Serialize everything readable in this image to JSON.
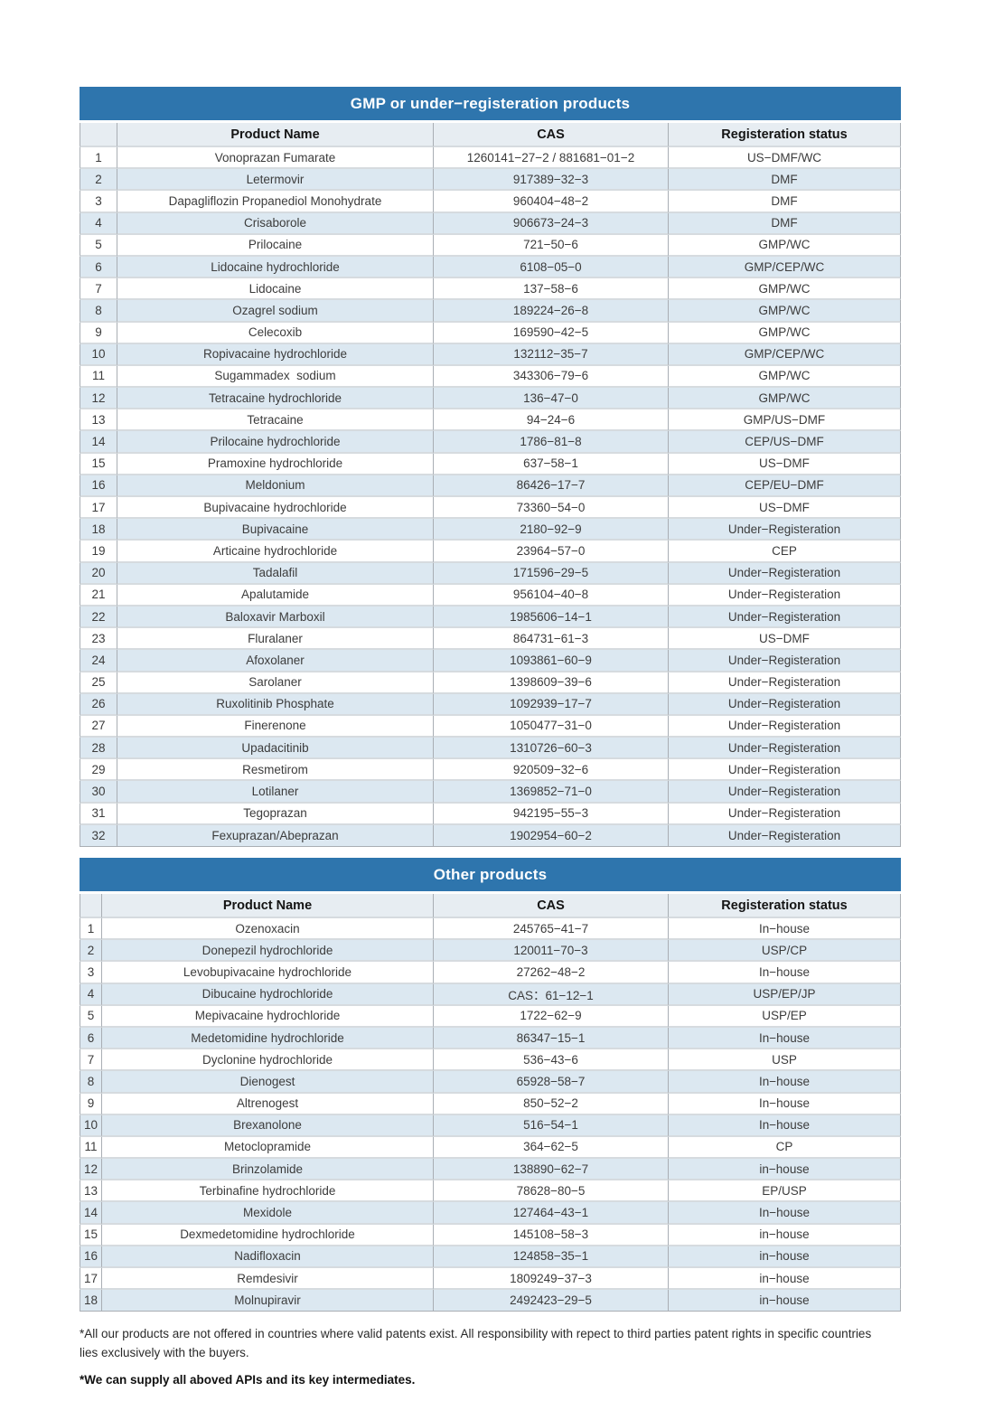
{
  "colors": {
    "title_bar_bg": "#2e75ad",
    "title_bar_text": "#ffffff",
    "header_row_bg": "#e7edf2",
    "stripe_row_bg": "#dce8f1",
    "grid_line": "#a9aeb4"
  },
  "tables": [
    {
      "title": "GMP or under−registeration products",
      "columns": [
        "Product Name",
        "CAS",
        "Registeration status"
      ],
      "rows": [
        {
          "no": "1",
          "name": "Vonoprazan Fumarate",
          "cas": "1260141−27−2 / 881681−01−2",
          "status": "US−DMF/WC"
        },
        {
          "no": "2",
          "name": "Letermovir",
          "cas": "917389−32−3",
          "status": "DMF"
        },
        {
          "no": "3",
          "name": "Dapagliflozin Propanediol Monohydrate",
          "cas": "960404−48−2",
          "status": "DMF"
        },
        {
          "no": "4",
          "name": "Crisaborole",
          "cas": "906673−24−3",
          "status": "DMF"
        },
        {
          "no": "5",
          "name": "Prilocaine",
          "cas": "721−50−6",
          "status": "GMP/WC"
        },
        {
          "no": "6",
          "name": "Lidocaine hydrochloride",
          "cas": "6108−05−0",
          "status": "GMP/CEP/WC"
        },
        {
          "no": "7",
          "name": "Lidocaine",
          "cas": "137−58−6",
          "status": "GMP/WC"
        },
        {
          "no": "8",
          "name": "Ozagrel sodium",
          "cas": "189224−26−8",
          "status": "GMP/WC"
        },
        {
          "no": "9",
          "name": "Celecoxib",
          "cas": "169590−42−5",
          "status": "GMP/WC"
        },
        {
          "no": "10",
          "name": "Ropivacaine hydrochloride",
          "cas": "132112−35−7",
          "status": "GMP/CEP/WC"
        },
        {
          "no": "11",
          "name": "Sugammadex  sodium",
          "cas": "343306−79−6",
          "status": "GMP/WC"
        },
        {
          "no": "12",
          "name": "Tetracaine hydrochloride",
          "cas": "136−47−0",
          "status": "GMP/WC"
        },
        {
          "no": "13",
          "name": "Tetracaine",
          "cas": "94−24−6",
          "status": "GMP/US−DMF"
        },
        {
          "no": "14",
          "name": "Prilocaine hydrochloride",
          "cas": "1786−81−8",
          "status": "CEP/US−DMF"
        },
        {
          "no": "15",
          "name": "Pramoxine hydrochloride",
          "cas": "637−58−1",
          "status": "US−DMF"
        },
        {
          "no": "16",
          "name": "Meldonium",
          "cas": "86426−17−7",
          "status": "CEP/EU−DMF"
        },
        {
          "no": "17",
          "name": "Bupivacaine hydrochloride",
          "cas": "73360−54−0",
          "status": "US−DMF"
        },
        {
          "no": "18",
          "name": "Bupivacaine",
          "cas": "2180−92−9",
          "status": "Under−Registeration"
        },
        {
          "no": "19",
          "name": "Articaine hydrochloride",
          "cas": "23964−57−0",
          "status": "CEP"
        },
        {
          "no": "20",
          "name": "Tadalafil",
          "cas": "171596−29−5",
          "status": "Under−Registeration"
        },
        {
          "no": "21",
          "name": "Apalutamide",
          "cas": "956104−40−8",
          "status": "Under−Registeration"
        },
        {
          "no": "22",
          "name": "Baloxavir Marboxil",
          "cas": "1985606−14−1",
          "status": "Under−Registeration"
        },
        {
          "no": "23",
          "name": "Fluralaner",
          "cas": "864731−61−3",
          "status": "US−DMF"
        },
        {
          "no": "24",
          "name": "Afoxolaner",
          "cas": "1093861−60−9",
          "status": "Under−Registeration"
        },
        {
          "no": "25",
          "name": "Sarolaner",
          "cas": "1398609−39−6",
          "status": "Under−Registeration"
        },
        {
          "no": "26",
          "name": "Ruxolitinib Phosphate",
          "cas": "1092939−17−7",
          "status": "Under−Registeration"
        },
        {
          "no": "27",
          "name": "Finerenone",
          "cas": "1050477−31−0",
          "status": "Under−Registeration"
        },
        {
          "no": "28",
          "name": "Upadacitinib",
          "cas": "1310726−60−3",
          "status": "Under−Registeration"
        },
        {
          "no": "29",
          "name": "Resmetirom",
          "cas": "920509−32−6",
          "status": "Under−Registeration"
        },
        {
          "no": "30",
          "name": "Lotilaner",
          "cas": "1369852−71−0",
          "status": "Under−Registeration"
        },
        {
          "no": "31",
          "name": "Tegoprazan",
          "cas": "942195−55−3",
          "status": "Under−Registeration"
        },
        {
          "no": "32",
          "name": "Fexuprazan/Abeprazan",
          "cas": "1902954−60−2",
          "status": "Under−Registeration"
        }
      ]
    },
    {
      "title": "Other products",
      "columns": [
        "Product Name",
        "CAS",
        "Registeration status"
      ],
      "rows": [
        {
          "no": "1",
          "name": "Ozenoxacin",
          "cas": "245765−41−7",
          "status": "In−house"
        },
        {
          "no": "2",
          "name": "Donepezil hydrochloride",
          "cas": "120011−70−3",
          "status": "USP/CP"
        },
        {
          "no": "3",
          "name": "Levobupivacaine hydrochloride",
          "cas": "27262−48−2",
          "status": "In−house"
        },
        {
          "no": "4",
          "name": "Dibucaine hydrochloride",
          "cas": "CAS：61−12−1",
          "status": "USP/EP/JP"
        },
        {
          "no": "5",
          "name": "Mepivacaine hydrochloride",
          "cas": "1722−62−9",
          "status": "USP/EP"
        },
        {
          "no": "6",
          "name": "Medetomidine hydrochloride",
          "cas": "86347−15−1",
          "status": "In−house"
        },
        {
          "no": "7",
          "name": "Dyclonine hydrochloride",
          "cas": "536−43−6",
          "status": "USP"
        },
        {
          "no": "8",
          "name": "Dienogest",
          "cas": "65928−58−7",
          "status": "In−house"
        },
        {
          "no": "9",
          "name": "Altrenogest",
          "cas": "850−52−2",
          "status": "In−house"
        },
        {
          "no": "10",
          "name": "Brexanolone",
          "cas": "516−54−1",
          "status": "In−house"
        },
        {
          "no": "11",
          "name": "Metoclopramide",
          "cas": "364−62−5",
          "status": "CP"
        },
        {
          "no": "12",
          "name": "Brinzolamide",
          "cas": "138890−62−7",
          "status": "in−house"
        },
        {
          "no": "13",
          "name": "Terbinafine hydrochloride",
          "cas": "78628−80−5",
          "status": "EP/USP"
        },
        {
          "no": "14",
          "name": "Mexidole",
          "cas": "127464−43−1",
          "status": "In−house"
        },
        {
          "no": "15",
          "name": "Dexmedetomidine hydrochloride",
          "cas": "145108−58−3",
          "status": "in−house"
        },
        {
          "no": "16",
          "name": "Nadifloxacin",
          "cas": "124858−35−1",
          "status": "in−house"
        },
        {
          "no": "17",
          "name": "Remdesivir",
          "cas": "1809249−37−3",
          "status": "in−house"
        },
        {
          "no": "18",
          "name": "Molnupiravir",
          "cas": "2492423−29−5",
          "status": "in−house"
        }
      ]
    }
  ],
  "footnotes": {
    "disclaimer": "*All our products are not offered in countries where valid patents exist. All responsibility with repect to third parties patent rights in specific countries lies exclusively with the buyers.",
    "supply_note": "*We can supply all aboved APIs and its key intermediates."
  }
}
